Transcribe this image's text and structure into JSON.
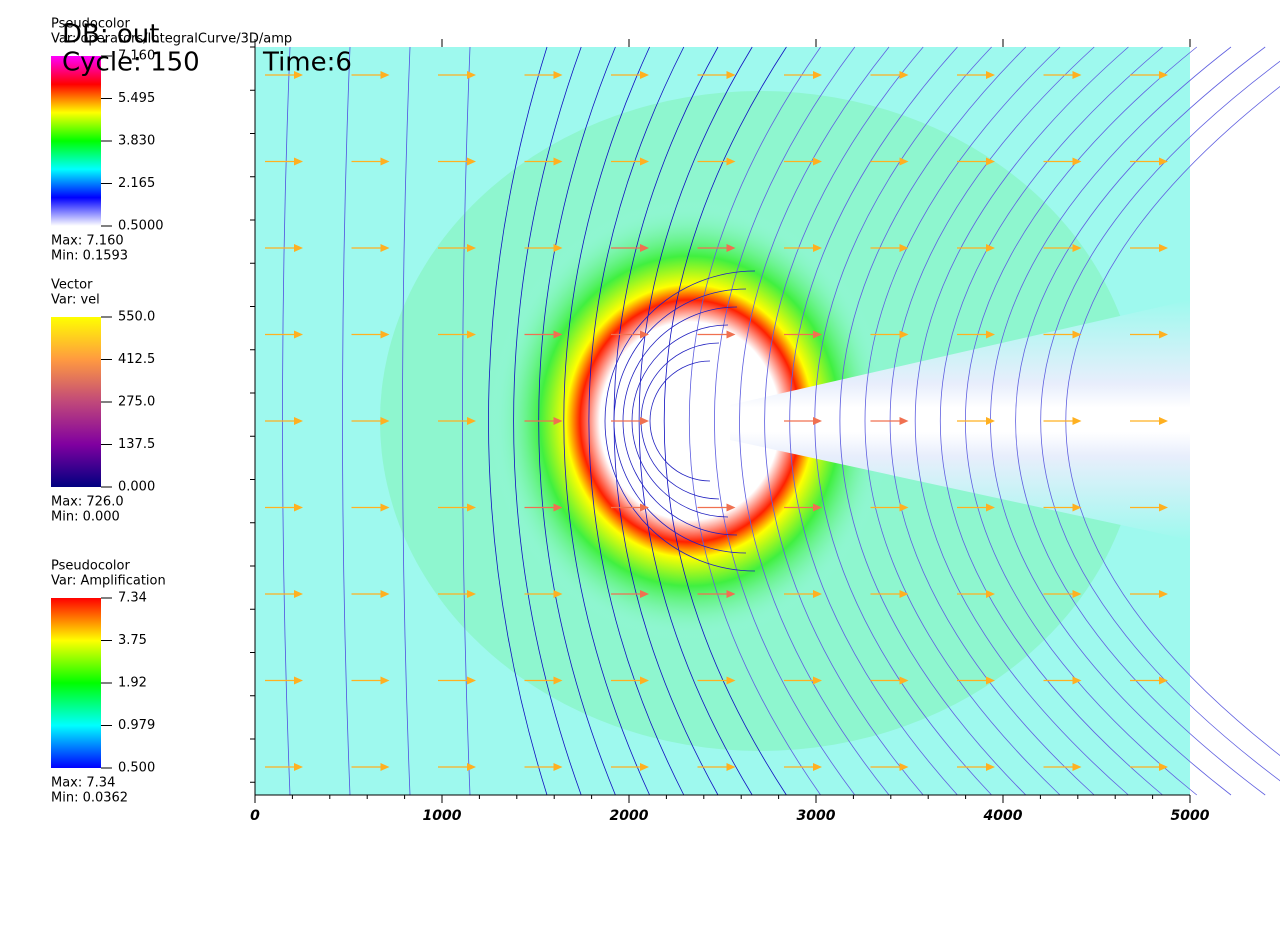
{
  "header": {
    "db": "DB: out",
    "cycle": "Cycle: 150",
    "time": "Time:6"
  },
  "legends": [
    {
      "plot": "Pseudocolor",
      "var": "Var: operators/IntegralCurve/3D/amp",
      "ticks": [
        "7.160",
        "5.495",
        "3.830",
        "2.165",
        "0.5000"
      ],
      "max": "Max:  7.160",
      "min": "Min:  0.1593",
      "colors": [
        "#ff00ff",
        "#ff0000",
        "#ffff00",
        "#00ff00",
        "#00ffff",
        "#0000ff",
        "#ffffff"
      ]
    },
    {
      "plot": "Vector",
      "var": "Var: vel",
      "ticks": [
        "550.0",
        "412.5",
        "275.0",
        "137.5",
        "0.000"
      ],
      "max": "Max:  726.0",
      "min": "Min:  0.000",
      "colors": [
        "#ffff00",
        "#ff9a40",
        "#c0487a",
        "#8000a0",
        "#000080"
      ]
    },
    {
      "plot": "Pseudocolor",
      "var": "Var: Amplification",
      "ticks": [
        "7.34",
        "3.75",
        "1.92",
        "0.979",
        "0.500"
      ],
      "max": "Max:  7.34",
      "min": "Min:  0.0362",
      "colors": [
        "#ff0000",
        "#ffff00",
        "#00ff00",
        "#00ffff",
        "#0000ff"
      ]
    }
  ],
  "axis": {
    "xlim": [
      0,
      5000
    ],
    "xticks": [
      0,
      1000,
      2000,
      3000,
      4000,
      5000
    ]
  }
}
